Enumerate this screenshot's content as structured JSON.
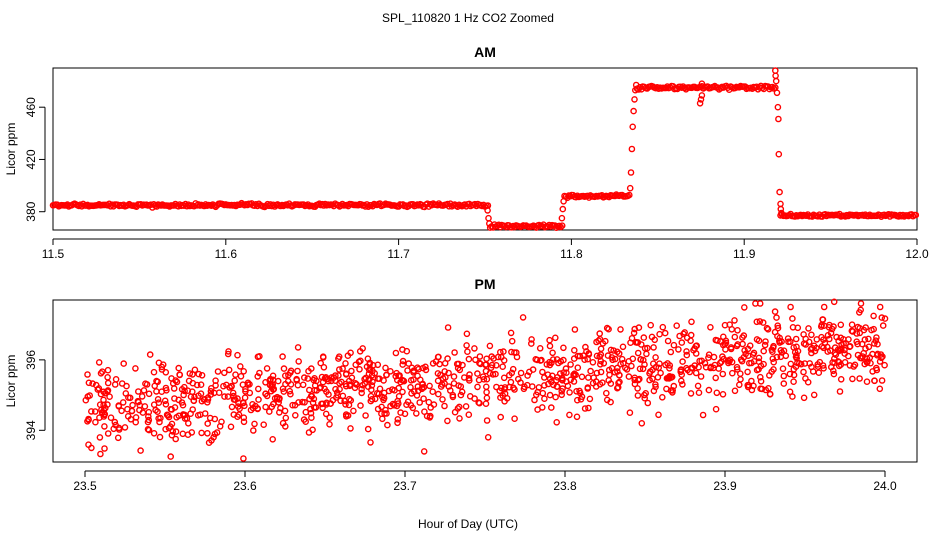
{
  "figure": {
    "title": "SPL_110820  1 Hz CO2 Zoomed",
    "xlabel": "Hour of Day (UTC)"
  },
  "colors": {
    "points": "#ff0000",
    "axes": "#000000",
    "background": "#ffffff"
  },
  "chart_data": [
    {
      "type": "scatter",
      "title": "AM",
      "xlabel": "",
      "ylabel": "Licor ppm",
      "xlim": [
        11.5,
        12.0
      ],
      "ylim": [
        366,
        490
      ],
      "xticks": [
        11.5,
        11.6,
        11.7,
        11.8,
        11.9,
        12.0
      ],
      "xtick_labels": [
        "11.5",
        "11.6",
        "11.7",
        "11.8",
        "11.9",
        "12.0"
      ],
      "yticks": [
        380,
        420,
        460
      ],
      "ytick_labels": [
        "380",
        "420",
        "460"
      ],
      "sampling_hz": 1,
      "segments": [
        {
          "x_start": 11.5,
          "x_end": 11.752,
          "level": 385,
          "noise": 0.6
        },
        {
          "x_start": 11.753,
          "x_end": 11.795,
          "level": 369,
          "noise": 0.6
        },
        {
          "x_start": 11.796,
          "x_end": 11.834,
          "level": 392,
          "noise": 0.6
        },
        {
          "x_start": 11.838,
          "x_end": 11.918,
          "level": 475,
          "noise": 0.7
        },
        {
          "x_start": 11.921,
          "x_end": 12.0,
          "level": 377,
          "noise": 0.5
        }
      ],
      "points": [
        {
          "x": 11.7515,
          "y": 381
        },
        {
          "x": 11.752,
          "y": 375
        },
        {
          "x": 11.7525,
          "y": 371
        },
        {
          "x": 11.7945,
          "y": 375
        },
        {
          "x": 11.795,
          "y": 382
        },
        {
          "x": 11.7955,
          "y": 388
        },
        {
          "x": 11.834,
          "y": 398
        },
        {
          "x": 11.8345,
          "y": 410
        },
        {
          "x": 11.835,
          "y": 428
        },
        {
          "x": 11.8355,
          "y": 445
        },
        {
          "x": 11.836,
          "y": 457
        },
        {
          "x": 11.8365,
          "y": 466
        },
        {
          "x": 11.837,
          "y": 473
        },
        {
          "x": 11.8375,
          "y": 477
        },
        {
          "x": 11.8745,
          "y": 463
        },
        {
          "x": 11.875,
          "y": 466
        },
        {
          "x": 11.8755,
          "y": 469
        },
        {
          "x": 11.8755,
          "y": 478
        },
        {
          "x": 11.918,
          "y": 488
        },
        {
          "x": 11.9182,
          "y": 484
        },
        {
          "x": 11.9185,
          "y": 480
        },
        {
          "x": 11.919,
          "y": 471
        },
        {
          "x": 11.9195,
          "y": 460
        },
        {
          "x": 11.9198,
          "y": 451
        },
        {
          "x": 11.92,
          "y": 424
        },
        {
          "x": 11.9205,
          "y": 395
        },
        {
          "x": 11.921,
          "y": 386
        },
        {
          "x": 11.9212,
          "y": 382
        },
        {
          "x": 11.9215,
          "y": 379
        }
      ]
    },
    {
      "type": "scatter",
      "title": "PM",
      "xlabel": "Hour of Day (UTC)",
      "ylabel": "Licor ppm",
      "xlim": [
        23.48,
        24.02
      ],
      "ylim": [
        393.1,
        397.7
      ],
      "xticks": [
        23.5,
        23.6,
        23.7,
        23.8,
        23.9,
        24.0
      ],
      "xtick_labels": [
        "23.5",
        "23.6",
        "23.7",
        "23.8",
        "23.9",
        "24.0"
      ],
      "yticks": [
        394,
        396
      ],
      "ytick_labels": [
        "394",
        "396"
      ],
      "sampling_hz": 1,
      "trend": {
        "x_start": 23.5,
        "y_start": 394.6,
        "x_end": 24.0,
        "y_end": 396.4,
        "spread": 0.55
      },
      "points": [
        {
          "x": 23.919,
          "y": 397.6
        },
        {
          "x": 23.985,
          "y": 397.6
        },
        {
          "x": 23.922,
          "y": 397.6
        },
        {
          "x": 23.962,
          "y": 397.5
        },
        {
          "x": 23.941,
          "y": 397.5
        },
        {
          "x": 23.997,
          "y": 397.5
        },
        {
          "x": 23.998,
          "y": 397.2
        },
        {
          "x": 23.712,
          "y": 393.4
        },
        {
          "x": 23.599,
          "y": 393.2
        },
        {
          "x": 23.504,
          "y": 393.5
        },
        {
          "x": 23.848,
          "y": 394.2
        },
        {
          "x": 23.752,
          "y": 393.8
        },
        {
          "x": 23.548,
          "y": 395.8
        },
        {
          "x": 23.609,
          "y": 396.1
        },
        {
          "x": 23.666,
          "y": 396.2
        }
      ]
    }
  ]
}
